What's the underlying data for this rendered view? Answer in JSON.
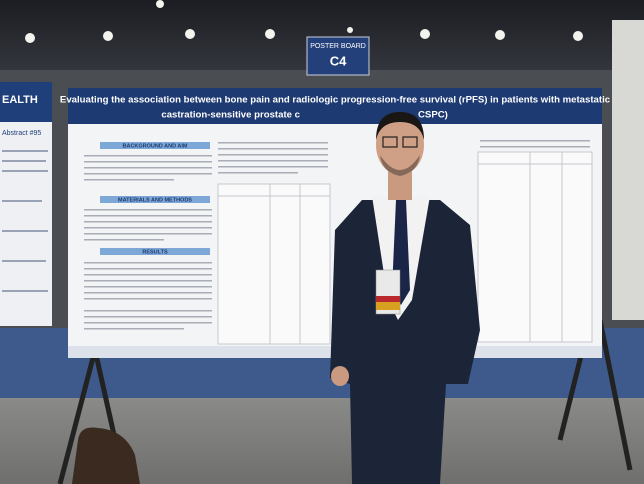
{
  "sign": {
    "label": "POSTER BOARD",
    "number": "C4"
  },
  "poster": {
    "title_line1": "Evaluating the association between bone pain and radiologic progression-free survival (rPFS) in patients with metastatic",
    "title_line2_left": "castration-sensitive prostate c",
    "title_line2_right": "CSPC)",
    "sections": [
      "BACKGROUND AND AIM",
      "MATERIALS AND METHODS",
      "RESULTS"
    ]
  },
  "left_poster": {
    "title": "EALTH",
    "abstract": "Abstract #95"
  }
}
